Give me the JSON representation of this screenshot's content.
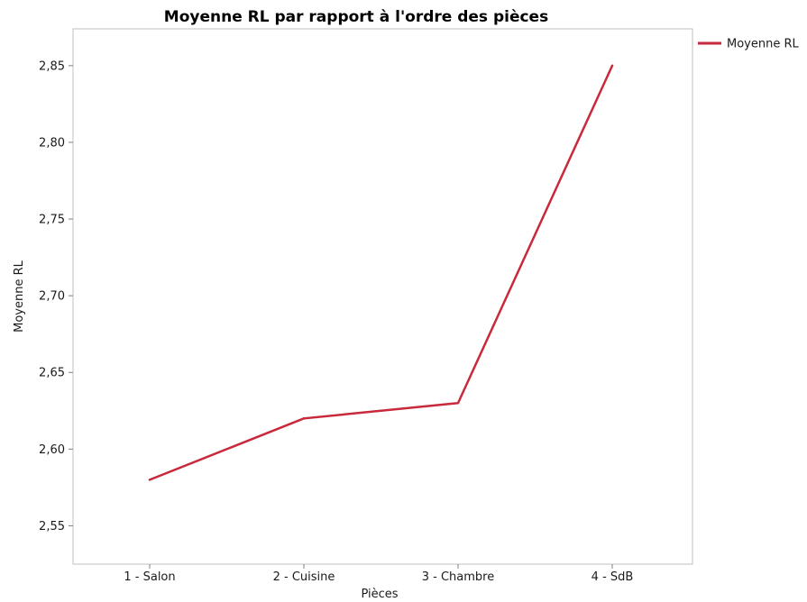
{
  "chart_data": {
    "type": "line",
    "title": "Moyenne RL par rapport à l'ordre des pièces",
    "xlabel": "Pièces",
    "ylabel": "Moyenne RL",
    "categories": [
      "1 - Salon",
      "2 - Cuisine",
      "3 - Chambre",
      "4 - SdB"
    ],
    "series": [
      {
        "name": "Moyenne RL",
        "values": [
          2.58,
          2.62,
          2.63,
          2.85
        ],
        "color": "#c8293b"
      }
    ],
    "ylim": [
      2.525,
      2.874
    ],
    "yticks": [
      2.55,
      2.6,
      2.65,
      2.7,
      2.75,
      2.8,
      2.85
    ],
    "ytick_labels": [
      "2,55",
      "2,60",
      "2,65",
      "2,70",
      "2,75",
      "2,80",
      "2,85"
    ],
    "grid": false,
    "legend": "top-right"
  }
}
